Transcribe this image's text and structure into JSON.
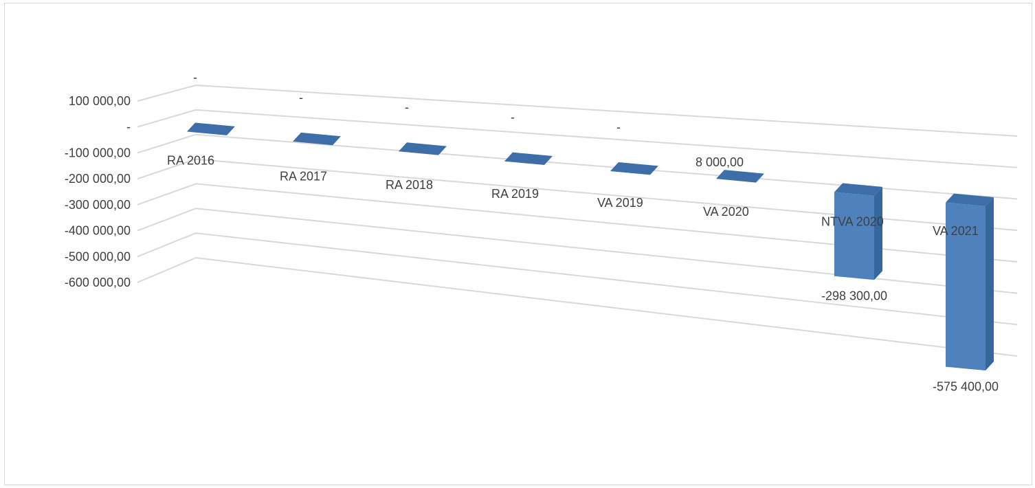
{
  "chart_data": {
    "type": "bar",
    "title": "",
    "xlabel": "",
    "ylabel": "",
    "categories": [
      "RA 2016",
      "RA 2017",
      "RA 2018",
      "RA 2019",
      "VA 2019",
      "VA 2020",
      "NTVA 2020",
      "VA 2021"
    ],
    "values": [
      0,
      0,
      0,
      0,
      0,
      8000,
      -298300,
      -575400
    ],
    "data_labels": [
      "-",
      "-",
      "-",
      "-",
      "-",
      "8 000,00",
      "-298 300,00",
      "-575 400,00"
    ],
    "ylim": [
      -600000,
      100000
    ],
    "yticks": [
      100000,
      0,
      -100000,
      -200000,
      -300000,
      -400000,
      -500000,
      -600000
    ],
    "ytick_labels": [
      "100 000,00",
      "-",
      "-100 000,00",
      "-200 000,00",
      "-300 000,00",
      "-400 000,00",
      "-500 000,00",
      "-600 000,00"
    ],
    "grid": true,
    "legend": "none",
    "perspective": "3d",
    "bar_color": "#4f81bd",
    "bar_side_color": "#35669e",
    "bar_top_color": "#3d6ea8",
    "gridline_color": "#d9d9d9"
  }
}
